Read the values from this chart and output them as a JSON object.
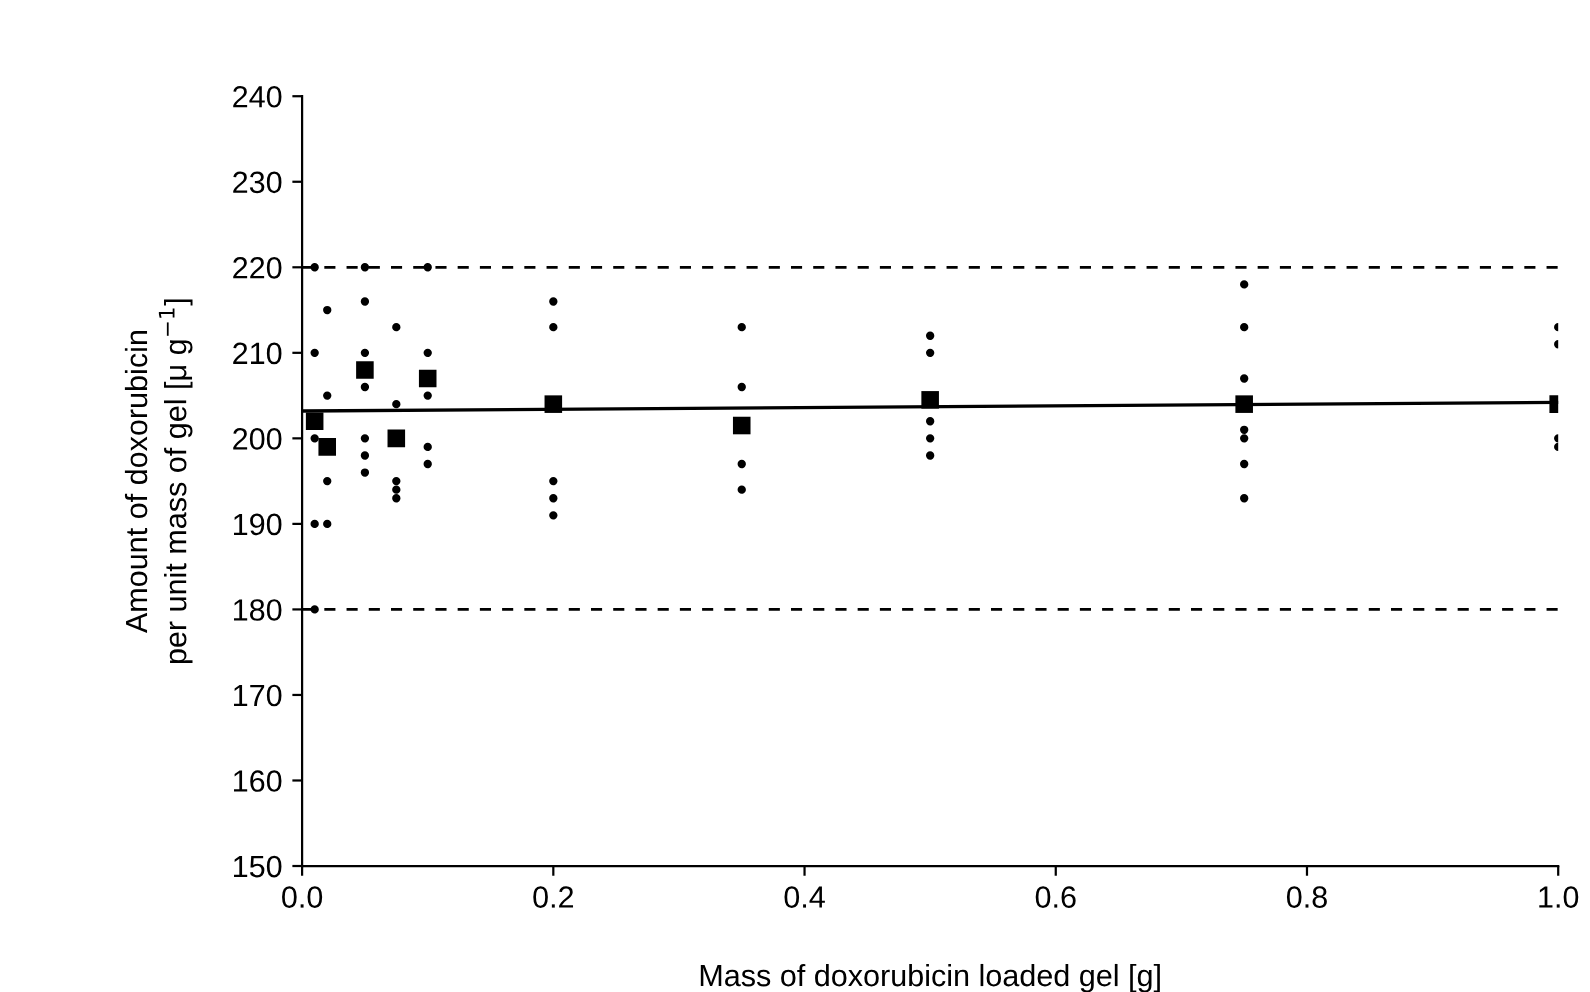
{
  "chart_data": {
    "type": "scatter",
    "xlabel": "Mass of doxorubicin loaded gel [g]",
    "ylabel": "Amount of doxorubicin\nper unit mass of gel [μ g$^{−1}$]",
    "xlim": [
      0,
      1
    ],
    "xticks": [
      "0.0",
      0.2,
      0.4,
      0.6,
      0.8,
      "1.0"
    ],
    "ylim": [
      150,
      240
    ],
    "yticks": [
      150,
      160,
      170,
      180,
      190,
      200,
      210,
      220,
      230,
      240
    ],
    "grid": false,
    "legend": false,
    "series": [
      {
        "marker": "circle",
        "color": "#000000",
        "x": [
          0.01,
          0.01,
          0.01,
          0.01,
          0.01,
          0.02,
          0.02,
          0.02,
          0.02,
          0.05,
          0.05,
          0.05,
          0.05,
          0.05,
          0.05,
          0.05,
          0.075,
          0.075,
          0.075,
          0.075,
          0.075,
          0.1,
          0.1,
          0.1,
          0.1,
          0.1,
          0.2,
          0.2,
          0.2,
          0.2,
          0.2,
          0.35,
          0.35,
          0.35,
          0.35,
          0.5,
          0.5,
          0.5,
          0.5,
          0.5,
          0.75,
          0.75,
          0.75,
          0.75,
          0.75,
          0.75,
          0.75,
          1.0,
          1.0,
          1.0,
          1.0
        ],
        "values": [
          220,
          210,
          200,
          190,
          180,
          215,
          205,
          195,
          190,
          220,
          216,
          210,
          206,
          200,
          198,
          196,
          213,
          204,
          195,
          194,
          193,
          220,
          210,
          205,
          199,
          197,
          216,
          213,
          195,
          193,
          191,
          213,
          206,
          197,
          194,
          212,
          210,
          202,
          200,
          198,
          218,
          213,
          207,
          201,
          200,
          197,
          193,
          213,
          211,
          200,
          199
        ]
      },
      {
        "type": "scatter",
        "marker": "square",
        "color": "#000000",
        "x": [
          0.01,
          0.02,
          0.05,
          0.075,
          0.1,
          0.2,
          0.35,
          0.5,
          0.75,
          1.0
        ],
        "values": [
          202,
          199,
          208,
          200,
          207,
          204,
          201.5,
          204.5,
          204,
          204
        ]
      },
      {
        "type": "line",
        "marker": "none",
        "color": "#000000",
        "x": [
          0,
          1
        ],
        "values": [
          203.2,
          204.2
        ]
      }
    ],
    "ref_lines": [
      {
        "axis": "y",
        "value": 180,
        "line_style": "dashed",
        "color": "#000000"
      },
      {
        "axis": "y",
        "value": 220,
        "line_style": "dashed",
        "color": "#000000"
      }
    ]
  }
}
